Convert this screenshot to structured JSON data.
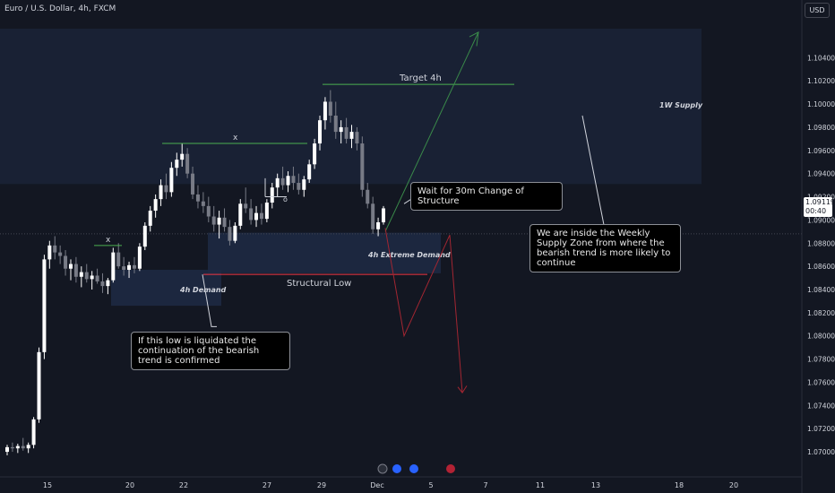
{
  "header": {
    "title": "Euro / U.S. Dollar, 4h, FXCM"
  },
  "currency_button": "USD",
  "price_badge": {
    "price": "1.09119",
    "countdown": "00:40"
  },
  "annotations": {
    "target": "Target 4h",
    "x1": "x",
    "x2": "x",
    "o": "o",
    "weekly_supply": "1W Supply",
    "extreme_demand": "4h Extreme Demand",
    "demand_4h": "4h Demand",
    "structural_low": "Structural Low"
  },
  "callouts": {
    "wait": "Wait for 30m Change of Structure",
    "weekly": "We are inside the Weekly Supply Zone from where the bearish trend is more likely to continue",
    "liquidate": "If this low is liquidated the continuation of the bearish trend is confirmed"
  },
  "colors": {
    "background": "#131722",
    "up": "#ffffff",
    "down": "#787b86",
    "green": "#4caf50",
    "red": "#f23645",
    "zone": "#1f2a44"
  },
  "chart_data": {
    "type": "candlestick",
    "title": "Euro / U.S. Dollar, 4h, FXCM",
    "ylim": [
      1.069,
      1.1065
    ],
    "y_ticks": [
      "1.10400",
      "1.10200",
      "1.10000",
      "1.09800",
      "1.09600",
      "1.09400",
      "1.09200",
      "1.09000",
      "1.08800",
      "1.08600",
      "1.08400",
      "1.08200",
      "1.08000",
      "1.07800",
      "1.07600",
      "1.07400",
      "1.07200",
      "1.07000"
    ],
    "x_ticks": [
      "15",
      "20",
      "22",
      "27",
      "29",
      "Dec",
      "5",
      "7",
      "11",
      "13",
      "18",
      "20"
    ],
    "last_price": 1.09119,
    "candles": [
      [
        1.07,
        1.0706,
        1.0697,
        1.0704
      ],
      [
        1.0704,
        1.0708,
        1.07,
        1.0703
      ],
      [
        1.0703,
        1.0707,
        1.0699,
        1.0705
      ],
      [
        1.0705,
        1.0712,
        1.0701,
        1.0703
      ],
      [
        1.0703,
        1.0708,
        1.0699,
        1.0706
      ],
      [
        1.0706,
        1.073,
        1.0703,
        1.0728
      ],
      [
        1.0728,
        1.079,
        1.0725,
        1.0786
      ],
      [
        1.0786,
        1.087,
        1.078,
        1.0866
      ],
      [
        1.0866,
        1.0882,
        1.0858,
        1.0878
      ],
      [
        1.0878,
        1.0886,
        1.0866,
        1.0872
      ],
      [
        1.0872,
        1.0878,
        1.0862,
        1.0869
      ],
      [
        1.0869,
        1.0874,
        1.0852,
        1.0858
      ],
      [
        1.0858,
        1.0866,
        1.0848,
        1.0862
      ],
      [
        1.0862,
        1.0868,
        1.0846,
        1.0851
      ],
      [
        1.0851,
        1.086,
        1.0842,
        1.0855
      ],
      [
        1.0855,
        1.0862,
        1.0846,
        1.0849
      ],
      [
        1.0849,
        1.0856,
        1.084,
        1.0852
      ],
      [
        1.0852,
        1.0858,
        1.0845,
        1.0847
      ],
      [
        1.0847,
        1.0854,
        1.0837,
        1.0843
      ],
      [
        1.0843,
        1.085,
        1.0836,
        1.0848
      ],
      [
        1.0848,
        1.0876,
        1.0846,
        1.0872
      ],
      [
        1.0872,
        1.088,
        1.0858,
        1.086
      ],
      [
        1.086,
        1.0868,
        1.0852,
        1.0857
      ],
      [
        1.0857,
        1.0864,
        1.085,
        1.0861
      ],
      [
        1.0861,
        1.0868,
        1.0854,
        1.0858
      ],
      [
        1.0858,
        1.088,
        1.0856,
        1.0877
      ],
      [
        1.0877,
        1.0898,
        1.0874,
        1.0895
      ],
      [
        1.0895,
        1.0912,
        1.089,
        1.0908
      ],
      [
        1.0908,
        1.0922,
        1.0902,
        1.0918
      ],
      [
        1.0918,
        1.0935,
        1.0912,
        1.093
      ],
      [
        1.093,
        1.094,
        1.0918,
        1.0924
      ],
      [
        1.0924,
        1.095,
        1.092,
        1.0945
      ],
      [
        1.0945,
        1.0958,
        1.0938,
        1.0952
      ],
      [
        1.0952,
        1.0966,
        1.0946,
        1.0957
      ],
      [
        1.0957,
        1.0962,
        1.0936,
        1.094
      ],
      [
        1.094,
        1.0946,
        1.0918,
        1.0922
      ],
      [
        1.0922,
        1.093,
        1.091,
        1.0916
      ],
      [
        1.0916,
        1.0924,
        1.0906,
        1.0912
      ],
      [
        1.0912,
        1.092,
        1.0898,
        1.0903
      ],
      [
        1.0903,
        1.0912,
        1.089,
        1.0896
      ],
      [
        1.0896,
        1.0908,
        1.0884,
        1.0902
      ],
      [
        1.0902,
        1.091,
        1.089,
        1.0894
      ],
      [
        1.0894,
        1.09,
        1.0878,
        1.0882
      ],
      [
        1.0882,
        1.0898,
        1.088,
        1.0895
      ],
      [
        1.0895,
        1.0918,
        1.0892,
        1.0914
      ],
      [
        1.0914,
        1.0928,
        1.0906,
        1.091
      ],
      [
        1.091,
        1.0918,
        1.0896,
        1.09
      ],
      [
        1.09,
        1.0912,
        1.0894,
        1.0906
      ],
      [
        1.0906,
        1.0914,
        1.0896,
        1.0901
      ],
      [
        1.0901,
        1.0918,
        1.0898,
        1.0915
      ],
      [
        1.0915,
        1.0932,
        1.091,
        1.0928
      ],
      [
        1.0928,
        1.094,
        1.092,
        1.0936
      ],
      [
        1.0936,
        1.0946,
        1.0926,
        1.093
      ],
      [
        1.093,
        1.0942,
        1.0924,
        1.0938
      ],
      [
        1.0938,
        1.0946,
        1.0926,
        1.0932
      ],
      [
        1.0932,
        1.094,
        1.0922,
        1.0926
      ],
      [
        1.0926,
        1.0938,
        1.092,
        1.0935
      ],
      [
        1.0935,
        1.0952,
        1.0932,
        1.0948
      ],
      [
        1.0948,
        1.097,
        1.0944,
        1.0966
      ],
      [
        1.0966,
        1.099,
        1.096,
        1.0986
      ],
      [
        1.0986,
        1.1006,
        1.0978,
        1.1002
      ],
      [
        1.1002,
        1.1012,
        1.0984,
        1.099
      ],
      [
        1.099,
        1.1002,
        1.097,
        1.0976
      ],
      [
        1.0976,
        1.0986,
        1.0966,
        1.098
      ],
      [
        1.098,
        1.0988,
        1.0966,
        1.097
      ],
      [
        1.097,
        1.0982,
        1.0962,
        1.0976
      ],
      [
        1.0976,
        1.098,
        1.096,
        1.0966
      ],
      [
        1.0966,
        1.0972,
        1.092,
        1.0926
      ],
      [
        1.0926,
        1.0932,
        1.091,
        1.0914
      ],
      [
        1.0914,
        1.092,
        1.0888,
        1.0892
      ],
      [
        1.0892,
        1.0902,
        1.0886,
        1.0898
      ],
      [
        1.0898,
        1.0912,
        1.0896,
        1.091
      ]
    ]
  }
}
